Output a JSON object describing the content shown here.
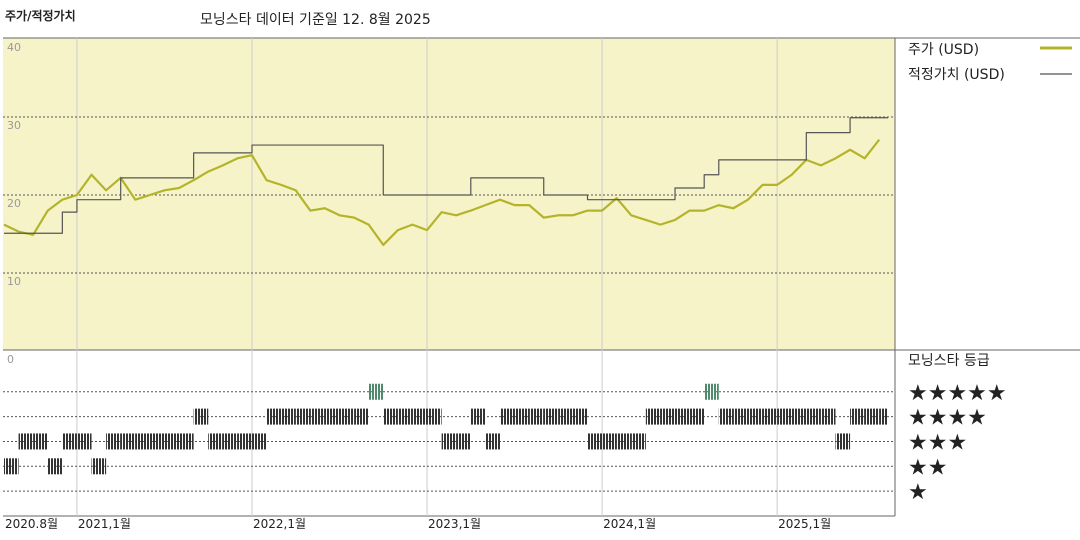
{
  "chart_data": [
    {
      "type": "line",
      "title": "주가/적정가치",
      "subtitle": "모닝스타 데이터 기준일 12. 8월 2025",
      "x": [
        0,
        1,
        2,
        3,
        4,
        5,
        6,
        7,
        8,
        9,
        10,
        11,
        12,
        13,
        14,
        15,
        16,
        17,
        18,
        19,
        20,
        21,
        22,
        23,
        24,
        25,
        26,
        27,
        28,
        29,
        30,
        31,
        32,
        33,
        34,
        35,
        36,
        37,
        38,
        39,
        40,
        41,
        42,
        43,
        44,
        45,
        46,
        47,
        48,
        49,
        50,
        51,
        52,
        53,
        54,
        55,
        56,
        57,
        58,
        59,
        60
      ],
      "xlim": [
        0,
        60.6
      ],
      "xticks": [
        {
          "value": 0,
          "label": "2020.8월"
        },
        {
          "value": 5,
          "label": "2021,1월"
        },
        {
          "value": 17,
          "label": "2022,1월"
        },
        {
          "value": 29,
          "label": "2023,1월"
        },
        {
          "value": 41,
          "label": "2024,1월"
        },
        {
          "value": 53,
          "label": "2025,1월"
        }
      ],
      "ylim": [
        0,
        40
      ],
      "yticks": [
        0,
        10,
        20,
        30,
        40
      ],
      "grid": true,
      "background": "#f7f3c9",
      "series": [
        {
          "name": "주가 (USD)",
          "color": "#b3b42a",
          "values": [
            16.2,
            15.3,
            14.9,
            18,
            19.4,
            20,
            22.6,
            20.6,
            22.2,
            19.4,
            20,
            20.6,
            20.9,
            21.9,
            23,
            23.8,
            24.7,
            25.1,
            21.9,
            21.3,
            20.6,
            18,
            18.3,
            17.4,
            17.1,
            16.2,
            13.6,
            15.5,
            16.2,
            15.5,
            17.8,
            17.4,
            18,
            18.7,
            19.4,
            18.7,
            18.7,
            17.1,
            17.4,
            17.4,
            18,
            18,
            19.6,
            17.4,
            16.8,
            16.2,
            16.8,
            18,
            18,
            18.7,
            18.3,
            19.4,
            21.3,
            21.3,
            22.6,
            24.5,
            23.8,
            24.7,
            25.8,
            24.7,
            27.1
          ]
        },
        {
          "name": "적정가치 (USD)",
          "color": "#555555",
          "step": true,
          "values": [
            15.1,
            15.1,
            15.1,
            15.1,
            17.8,
            19.4,
            19.4,
            19.4,
            22.2,
            22.2,
            22.2,
            22.2,
            22.2,
            25.4,
            25.4,
            25.4,
            25.4,
            26.4,
            26.4,
            26.4,
            26.4,
            26.4,
            26.4,
            26.4,
            26.4,
            26.4,
            20,
            20,
            20,
            20,
            20,
            20,
            22.2,
            22.2,
            22.2,
            22.2,
            22.2,
            20,
            20,
            20,
            19.4,
            19.4,
            19.4,
            19.4,
            19.4,
            19.4,
            20.9,
            20.9,
            22.6,
            24.5,
            24.5,
            24.5,
            24.5,
            24.5,
            24.5,
            28,
            28,
            28,
            29.9,
            29.9,
            29.9
          ]
        }
      ]
    },
    {
      "type": "rating",
      "title": "모닝스타 등급",
      "x": [
        0,
        1,
        2,
        3,
        4,
        5,
        6,
        7,
        8,
        9,
        10,
        11,
        12,
        13,
        14,
        15,
        16,
        17,
        18,
        19,
        20,
        21,
        22,
        23,
        24,
        25,
        26,
        27,
        28,
        29,
        30,
        31,
        32,
        33,
        34,
        35,
        36,
        37,
        38,
        39,
        40,
        41,
        42,
        43,
        44,
        45,
        46,
        47,
        48,
        49,
        50,
        51,
        52,
        53,
        54,
        55,
        56,
        57,
        58,
        59,
        60
      ],
      "xlim": [
        0,
        60.6
      ],
      "values": [
        2,
        3,
        3,
        2,
        3,
        3,
        2,
        3,
        3,
        3,
        3,
        3,
        3,
        4,
        3,
        3,
        3,
        3,
        4,
        4,
        4,
        4,
        4,
        4,
        4,
        5,
        4,
        4,
        4,
        4,
        3,
        3,
        4,
        3,
        4,
        4,
        4,
        4,
        4,
        4,
        3,
        3,
        3,
        3,
        4,
        4,
        4,
        4,
        5,
        4,
        4,
        4,
        4,
        4,
        4,
        4,
        4,
        3,
        4,
        4,
        4
      ],
      "ylim": [
        0,
        6.6
      ],
      "yticks": [
        {
          "value": 5,
          "label": "★★★★★"
        },
        {
          "value": 4,
          "label": "★★★★"
        },
        {
          "value": 3,
          "label": "★★★"
        },
        {
          "value": 2,
          "label": "★★"
        },
        {
          "value": 1,
          "label": "★"
        }
      ],
      "color": "#333333",
      "top_color": "#4f8a6c"
    }
  ]
}
